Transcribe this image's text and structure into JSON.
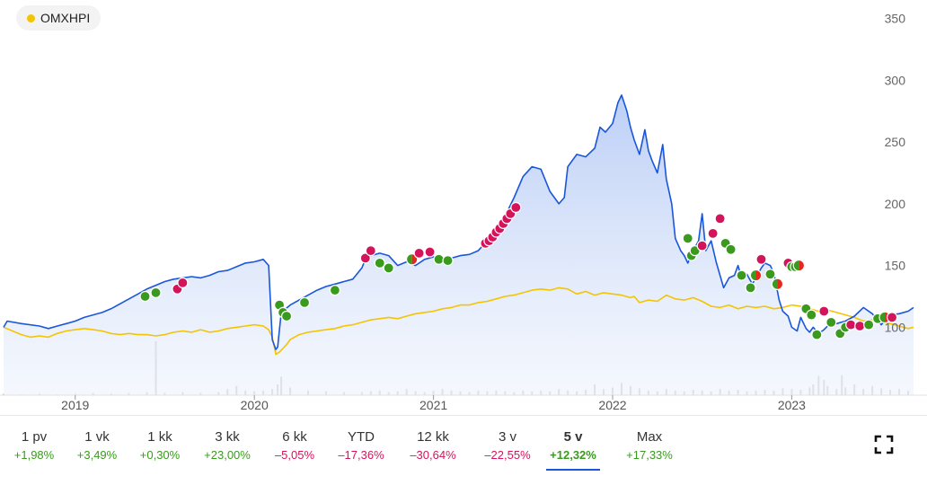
{
  "legend": {
    "label": "OMXHPI"
  },
  "colors": {
    "series_main": "#1a56db",
    "series_index": "#f5c400",
    "positive": "#3a9a1e",
    "negative": "#d4145a",
    "volume": "#c8c8c8"
  },
  "chart_data": {
    "type": "line",
    "legend_placement": "top-left",
    "y_axis": {
      "position": "right",
      "ticks": [
        100,
        150,
        200,
        250,
        300,
        350
      ],
      "ylim": [
        45,
        365
      ]
    },
    "x_axis": {
      "ticks": [
        "2019",
        "2020",
        "2021",
        "2022",
        "2023"
      ],
      "range": [
        2018.6,
        2023.68
      ]
    },
    "grid": false,
    "series": [
      {
        "values_x": [
          2018.6,
          2018.62,
          2018.7,
          2018.8,
          2018.85,
          2018.9,
          2018.95,
          2019.0,
          2019.05,
          2019.1,
          2019.15,
          2019.2,
          2019.25,
          2019.3,
          2019.35,
          2019.4,
          2019.45,
          2019.5,
          2019.55,
          2019.6,
          2019.65,
          2019.7,
          2019.75,
          2019.8,
          2019.85,
          2019.9,
          2019.95,
          2020.0,
          2020.05,
          2020.08,
          2020.1,
          2020.12,
          2020.13,
          2020.14,
          2020.15,
          2020.2,
          2020.25,
          2020.3,
          2020.35,
          2020.4,
          2020.45,
          2020.5,
          2020.55,
          2020.6,
          2020.62,
          2020.65,
          2020.7,
          2020.75,
          2020.8,
          2020.85,
          2020.9,
          2020.95,
          2021.0,
          2021.05,
          2021.1,
          2021.15,
          2021.2,
          2021.25,
          2021.3,
          2021.35,
          2021.4,
          2021.45,
          2021.5,
          2021.55,
          2021.6,
          2021.65,
          2021.7,
          2021.73,
          2021.75,
          2021.8,
          2021.85,
          2021.9,
          2021.93,
          2021.96,
          2022.0,
          2022.03,
          2022.05,
          2022.08,
          2022.1,
          2022.12,
          2022.15,
          2022.18,
          2022.2,
          2022.22,
          2022.25,
          2022.28,
          2022.3,
          2022.33,
          2022.35,
          2022.38,
          2022.4,
          2022.42,
          2022.45,
          2022.48,
          2022.5,
          2022.52,
          2022.55,
          2022.58,
          2022.6,
          2022.62,
          2022.65,
          2022.68,
          2022.7,
          2022.72,
          2022.75,
          2022.78,
          2022.8,
          2022.83,
          2022.85,
          2022.88,
          2022.9,
          2022.93,
          2022.95,
          2022.98,
          2023.0,
          2023.03,
          2023.05,
          2023.08,
          2023.1,
          2023.12,
          2023.15,
          2023.18,
          2023.2,
          2023.25,
          2023.3,
          2023.35,
          2023.4,
          2023.45,
          2023.5,
          2023.55,
          2023.6,
          2023.65,
          2023.68
        ],
        "values_y": [
          100,
          105,
          103,
          101,
          99,
          101,
          103,
          105,
          108,
          110,
          112,
          115,
          119,
          123,
          127,
          131,
          134,
          137,
          139,
          140,
          141,
          140,
          142,
          145,
          146,
          149,
          152,
          153,
          155,
          150,
          90,
          82,
          84,
          98,
          112,
          118,
          122,
          126,
          130,
          133,
          135,
          137,
          139,
          148,
          155,
          158,
          160,
          158,
          150,
          153,
          150,
          155,
          157,
          156,
          156,
          158,
          159,
          162,
          170,
          178,
          190,
          205,
          222,
          230,
          228,
          210,
          200,
          205,
          230,
          240,
          238,
          245,
          262,
          258,
          265,
          282,
          288,
          275,
          262,
          252,
          240,
          260,
          243,
          235,
          225,
          248,
          220,
          200,
          172,
          162,
          158,
          152,
          162,
          170,
          192,
          162,
          170,
          152,
          142,
          132,
          140,
          142,
          150,
          140,
          143,
          135,
          140,
          148,
          152,
          150,
          144,
          122,
          113,
          109,
          100,
          97,
          108,
          99,
          96,
          100,
          95,
          98,
          101,
          103,
          105,
          109,
          116,
          111,
          102,
          110,
          111,
          113,
          116
        ]
      },
      {
        "values_x": [
          2018.6,
          2018.65,
          2018.7,
          2018.75,
          2018.8,
          2018.85,
          2018.9,
          2018.95,
          2019.0,
          2019.05,
          2019.1,
          2019.15,
          2019.2,
          2019.25,
          2019.3,
          2019.35,
          2019.4,
          2019.45,
          2019.5,
          2019.55,
          2019.6,
          2019.65,
          2019.7,
          2019.75,
          2019.8,
          2019.85,
          2019.9,
          2019.95,
          2020.0,
          2020.05,
          2020.08,
          2020.1,
          2020.12,
          2020.14,
          2020.16,
          2020.18,
          2020.2,
          2020.25,
          2020.3,
          2020.35,
          2020.4,
          2020.45,
          2020.5,
          2020.55,
          2020.6,
          2020.65,
          2020.7,
          2020.75,
          2020.8,
          2020.85,
          2020.9,
          2020.95,
          2021.0,
          2021.05,
          2021.1,
          2021.15,
          2021.2,
          2021.25,
          2021.3,
          2021.35,
          2021.4,
          2021.45,
          2021.5,
          2021.55,
          2021.6,
          2021.65,
          2021.7,
          2021.75,
          2021.8,
          2021.85,
          2021.9,
          2021.95,
          2022.0,
          2022.05,
          2022.1,
          2022.12,
          2022.15,
          2022.2,
          2022.25,
          2022.3,
          2022.35,
          2022.4,
          2022.45,
          2022.5,
          2022.55,
          2022.6,
          2022.65,
          2022.7,
          2022.75,
          2022.8,
          2022.85,
          2022.9,
          2022.95,
          2023.0,
          2023.05,
          2023.1,
          2023.15,
          2023.2,
          2023.25,
          2023.3,
          2023.35,
          2023.4,
          2023.45,
          2023.5,
          2023.55,
          2023.6,
          2023.65,
          2023.68
        ],
        "values_y": [
          100,
          97,
          94,
          92,
          93,
          92,
          95,
          97,
          98,
          99,
          98,
          97,
          95,
          94,
          95,
          94,
          94,
          93,
          94,
          96,
          97,
          96,
          98,
          96,
          97,
          99,
          100,
          101,
          102,
          101,
          98,
          92,
          78,
          80,
          83,
          86,
          90,
          94,
          96,
          97,
          98,
          99,
          101,
          102,
          104,
          106,
          107,
          108,
          107,
          109,
          111,
          112,
          113,
          115,
          116,
          118,
          118,
          120,
          121,
          123,
          125,
          126,
          128,
          130,
          131,
          130,
          132,
          131,
          127,
          129,
          126,
          128,
          127,
          126,
          124,
          125,
          120,
          122,
          121,
          126,
          123,
          122,
          124,
          121,
          117,
          116,
          118,
          115,
          117,
          116,
          117,
          115,
          116,
          118,
          117,
          115,
          113,
          114,
          112,
          110,
          108,
          105,
          106,
          104,
          103,
          101,
          99,
          100
        ]
      }
    ],
    "trade_markers": [
      {
        "x": 2019.39,
        "y": 125,
        "type": "buy"
      },
      {
        "x": 2019.45,
        "y": 128,
        "type": "buy"
      },
      {
        "x": 2019.57,
        "y": 131,
        "type": "sell"
      },
      {
        "x": 2019.6,
        "y": 136,
        "type": "sell"
      },
      {
        "x": 2020.14,
        "y": 118,
        "type": "buy"
      },
      {
        "x": 2020.16,
        "y": 112,
        "type": "buy"
      },
      {
        "x": 2020.18,
        "y": 109,
        "type": "buy"
      },
      {
        "x": 2020.28,
        "y": 120,
        "type": "buy"
      },
      {
        "x": 2020.45,
        "y": 130,
        "type": "buy"
      },
      {
        "x": 2020.62,
        "y": 156,
        "type": "sell"
      },
      {
        "x": 2020.65,
        "y": 162,
        "type": "sell"
      },
      {
        "x": 2020.7,
        "y": 152,
        "type": "buy"
      },
      {
        "x": 2020.75,
        "y": 148,
        "type": "buy"
      },
      {
        "x": 2020.88,
        "y": 155,
        "type": "mixed"
      },
      {
        "x": 2020.92,
        "y": 160,
        "type": "sell"
      },
      {
        "x": 2020.98,
        "y": 161,
        "type": "sell"
      },
      {
        "x": 2021.03,
        "y": 155,
        "type": "buy"
      },
      {
        "x": 2021.08,
        "y": 154,
        "type": "buy"
      },
      {
        "x": 2021.29,
        "y": 168,
        "type": "sell"
      },
      {
        "x": 2021.31,
        "y": 170,
        "type": "sell"
      },
      {
        "x": 2021.33,
        "y": 173,
        "type": "sell"
      },
      {
        "x": 2021.35,
        "y": 177,
        "type": "sell"
      },
      {
        "x": 2021.37,
        "y": 180,
        "type": "sell"
      },
      {
        "x": 2021.39,
        "y": 184,
        "type": "sell"
      },
      {
        "x": 2021.41,
        "y": 188,
        "type": "sell"
      },
      {
        "x": 2021.43,
        "y": 192,
        "type": "sell"
      },
      {
        "x": 2021.46,
        "y": 197,
        "type": "sell"
      },
      {
        "x": 2022.42,
        "y": 172,
        "type": "buy"
      },
      {
        "x": 2022.44,
        "y": 158,
        "type": "buy"
      },
      {
        "x": 2022.46,
        "y": 162,
        "type": "buy"
      },
      {
        "x": 2022.5,
        "y": 166,
        "type": "sell"
      },
      {
        "x": 2022.56,
        "y": 176,
        "type": "sell"
      },
      {
        "x": 2022.6,
        "y": 188,
        "type": "sell"
      },
      {
        "x": 2022.63,
        "y": 168,
        "type": "buy"
      },
      {
        "x": 2022.66,
        "y": 163,
        "type": "buy"
      },
      {
        "x": 2022.72,
        "y": 142,
        "type": "buy"
      },
      {
        "x": 2022.77,
        "y": 132,
        "type": "buy"
      },
      {
        "x": 2022.8,
        "y": 142,
        "type": "mixed"
      },
      {
        "x": 2022.83,
        "y": 155,
        "type": "sell"
      },
      {
        "x": 2022.88,
        "y": 143,
        "type": "buy"
      },
      {
        "x": 2022.92,
        "y": 135,
        "type": "mixed"
      },
      {
        "x": 2022.98,
        "y": 152,
        "type": "sell"
      },
      {
        "x": 2023.0,
        "y": 149,
        "type": "buy"
      },
      {
        "x": 2023.02,
        "y": 149,
        "type": "buy"
      },
      {
        "x": 2023.04,
        "y": 150,
        "type": "mixed"
      },
      {
        "x": 2023.08,
        "y": 115,
        "type": "buy"
      },
      {
        "x": 2023.11,
        "y": 110,
        "type": "buy"
      },
      {
        "x": 2023.14,
        "y": 94,
        "type": "buy"
      },
      {
        "x": 2023.18,
        "y": 113,
        "type": "sell"
      },
      {
        "x": 2023.22,
        "y": 104,
        "type": "buy"
      },
      {
        "x": 2023.27,
        "y": 95,
        "type": "buy"
      },
      {
        "x": 2023.3,
        "y": 100,
        "type": "buy"
      },
      {
        "x": 2023.33,
        "y": 102,
        "type": "sell"
      },
      {
        "x": 2023.38,
        "y": 101,
        "type": "sell"
      },
      {
        "x": 2023.43,
        "y": 102,
        "type": "buy"
      },
      {
        "x": 2023.48,
        "y": 107,
        "type": "buy"
      },
      {
        "x": 2023.52,
        "y": 108,
        "type": "mixed"
      },
      {
        "x": 2023.56,
        "y": 108,
        "type": "sell"
      }
    ],
    "volume": {
      "x": [
        2018.6,
        2018.7,
        2018.8,
        2018.9,
        2019.0,
        2019.1,
        2019.2,
        2019.3,
        2019.4,
        2019.45,
        2019.5,
        2019.6,
        2019.7,
        2019.8,
        2019.85,
        2019.9,
        2019.95,
        2020.0,
        2020.05,
        2020.1,
        2020.13,
        2020.15,
        2020.2,
        2020.3,
        2020.4,
        2020.5,
        2020.6,
        2020.65,
        2020.7,
        2020.75,
        2020.8,
        2020.85,
        2020.9,
        2020.95,
        2021.0,
        2021.05,
        2021.1,
        2021.15,
        2021.2,
        2021.25,
        2021.3,
        2021.35,
        2021.4,
        2021.45,
        2021.5,
        2021.55,
        2021.6,
        2021.65,
        2021.7,
        2021.75,
        2021.8,
        2021.85,
        2021.9,
        2021.95,
        2022.0,
        2022.05,
        2022.1,
        2022.15,
        2022.2,
        2022.25,
        2022.3,
        2022.35,
        2022.4,
        2022.45,
        2022.5,
        2022.55,
        2022.6,
        2022.65,
        2022.7,
        2022.75,
        2022.8,
        2022.85,
        2022.9,
        2022.95,
        2023.0,
        2023.05,
        2023.1,
        2023.12,
        2023.15,
        2023.18,
        2023.2,
        2023.25,
        2023.28,
        2023.3,
        2023.35,
        2023.4,
        2023.45,
        2023.5,
        2023.55,
        2023.6,
        2023.65
      ],
      "values": [
        2,
        1,
        2,
        1,
        2,
        3,
        2,
        3,
        4,
        70,
        3,
        4,
        3,
        4,
        8,
        12,
        6,
        5,
        6,
        8,
        14,
        24,
        10,
        6,
        5,
        4,
        4,
        5,
        6,
        4,
        5,
        8,
        5,
        4,
        6,
        8,
        6,
        5,
        4,
        6,
        5,
        6,
        5,
        4,
        6,
        5,
        6,
        5,
        8,
        6,
        5,
        7,
        14,
        8,
        10,
        16,
        12,
        9,
        6,
        5,
        8,
        6,
        5,
        7,
        6,
        5,
        8,
        6,
        7,
        5,
        6,
        7,
        6,
        9,
        8,
        7,
        10,
        14,
        25,
        20,
        12,
        8,
        26,
        10,
        14,
        8,
        12,
        9,
        7,
        8,
        6
      ]
    }
  },
  "periods": [
    {
      "label": "1 pv",
      "change": "+1,98%",
      "sign": "positive",
      "active": false
    },
    {
      "label": "1 vk",
      "change": "+3,49%",
      "sign": "positive",
      "active": false
    },
    {
      "label": "1 kk",
      "change": "+0,30%",
      "sign": "positive",
      "active": false
    },
    {
      "label": "3 kk",
      "change": "+23,00%",
      "sign": "positive",
      "active": false
    },
    {
      "label": "6 kk",
      "change": "–5,05%",
      "sign": "negative",
      "active": false
    },
    {
      "label": "YTD",
      "change": "–17,36%",
      "sign": "negative",
      "active": false
    },
    {
      "label": "12 kk",
      "change": "–30,64%",
      "sign": "negative",
      "active": false
    },
    {
      "label": "3 v",
      "change": "–22,55%",
      "sign": "negative",
      "active": false
    },
    {
      "label": "5 v",
      "change": "+12,32%",
      "sign": "positive",
      "active": true
    },
    {
      "label": "Max",
      "change": "+17,33%",
      "sign": "positive",
      "active": false
    }
  ],
  "fullscreen_icon": "fullscreen-icon"
}
